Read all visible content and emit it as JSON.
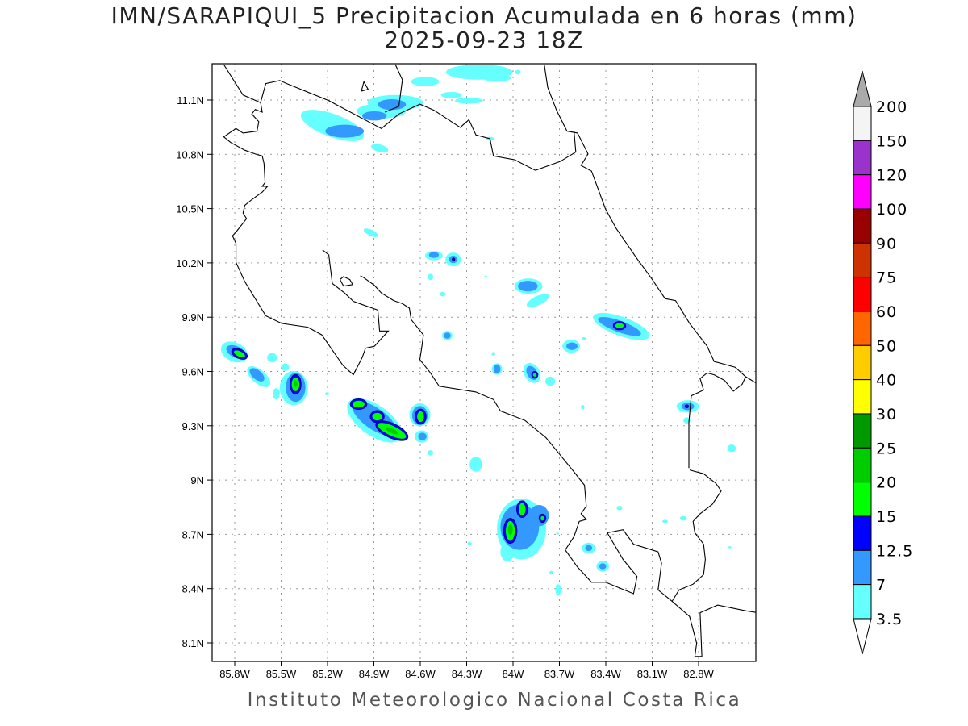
{
  "title": {
    "line1": "IMN/SARAPIQUI_5 Precipitacion Acumulada en 6 horas (mm)",
    "line2": "2025-09-23 18Z"
  },
  "footer": "Instituto Meteorologico Nacional Costa Rica",
  "map": {
    "lon_labels": [
      "85.8W",
      "85.5W",
      "85.2W",
      "84.9W",
      "84.6W",
      "84.3W",
      "84W",
      "83.7W",
      "83.4W",
      "83.1W",
      "82.8W"
    ],
    "lat_labels": [
      "11.1N",
      "10.8N",
      "10.5N",
      "10.2N",
      "9.9N",
      "9.6N",
      "9.3N",
      "9N",
      "8.7N",
      "8.4N",
      "8.1N"
    ],
    "lon_range": [
      -85.95,
      -82.5
    ],
    "lat_range": [
      8.0,
      11.3
    ]
  },
  "colorbar": {
    "labels": [
      "200",
      "150",
      "120",
      "100",
      "90",
      "75",
      "60",
      "50",
      "40",
      "30",
      "25",
      "20",
      "15",
      "12.5",
      "7",
      "3.5"
    ],
    "colors": [
      "#f4f4f4",
      "#9933cc",
      "#ff00ff",
      "#990000",
      "#cc3300",
      "#ff0000",
      "#ff6600",
      "#ffcc00",
      "#ffff00",
      "#009900",
      "#00cc00",
      "#00ff00",
      "#0000ff",
      "#3399ff",
      "#66ffff"
    ],
    "over_color": "#aaaaaa",
    "under_color": "#ffffff"
  }
}
